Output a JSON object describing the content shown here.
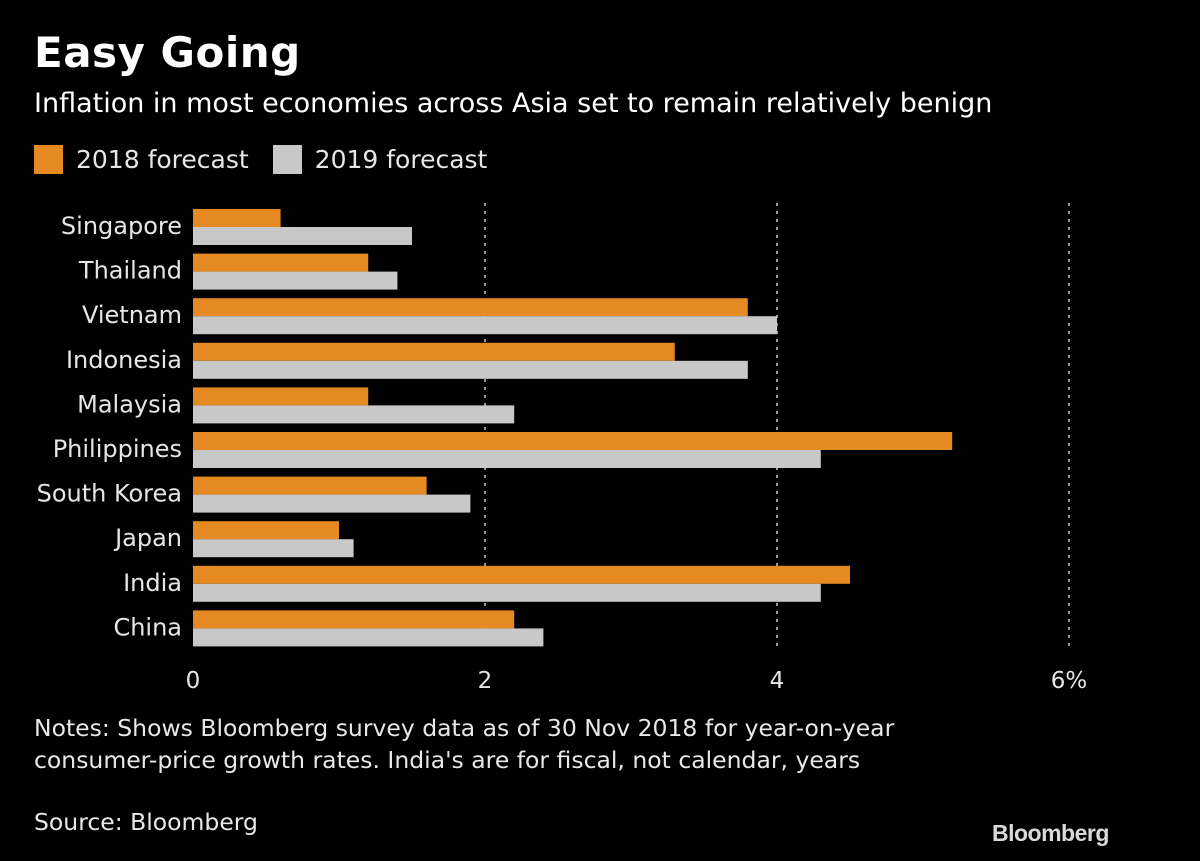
{
  "title": "Easy Going",
  "subtitle": "Inflation in most economies across Asia set to remain relatively benign",
  "legend": [
    {
      "label": "2018 forecast",
      "color": "#e58a22"
    },
    {
      "label": "2019 forecast",
      "color": "#c8c8c8"
    }
  ],
  "notes": "Notes: Shows Bloomberg survey data as of 30 Nov 2018 for year-on-year consumer-price growth rates. India's are for fiscal, not calendar, years",
  "source": "Source: Bloomberg",
  "brand": "Bloomberg",
  "chart_data": {
    "type": "bar",
    "orientation": "horizontal",
    "categories": [
      "Singapore",
      "Thailand",
      "Vietnam",
      "Indonesia",
      "Malaysia",
      "Philippines",
      "South Korea",
      "Japan",
      "India",
      "China"
    ],
    "series": [
      {
        "name": "2018 forecast",
        "color": "#e58a22",
        "values": [
          0.6,
          1.2,
          3.8,
          3.3,
          1.2,
          5.2,
          1.6,
          1.0,
          4.5,
          2.2
        ]
      },
      {
        "name": "2019 forecast",
        "color": "#c8c8c8",
        "values": [
          1.5,
          1.4,
          4.0,
          3.8,
          2.2,
          4.3,
          1.9,
          1.1,
          4.3,
          2.4
        ]
      }
    ],
    "xlim": [
      0,
      6
    ],
    "xticks": [
      0,
      2,
      4,
      6
    ],
    "xtick_labels": [
      "0",
      "2",
      "4",
      "6%"
    ],
    "grid": "vertical dashed at 2, 4, 6",
    "legend_position": "top-left"
  }
}
